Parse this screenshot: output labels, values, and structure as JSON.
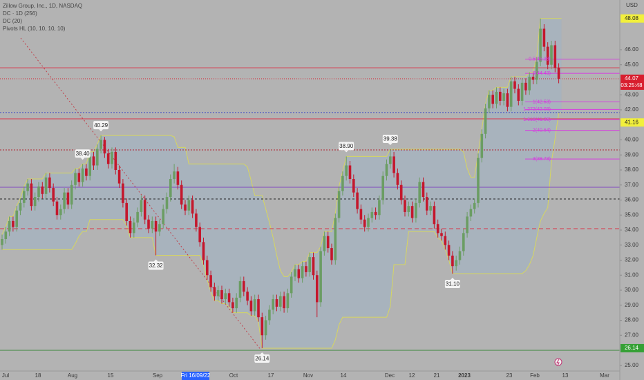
{
  "chart_data": {
    "type": "candlestick",
    "title": "Zillow Group, Inc., 1D, NASDAQ",
    "indicators": [
      "DC · 1D (256)",
      "DC (20)",
      "Pivots HL (10, 10, 10, 10)"
    ],
    "currency": "USD",
    "x_labels": [
      "Jul",
      "18",
      "Aug",
      "15",
      "Sep",
      "Fri 16/09/22",
      "Oct",
      "17",
      "Nov",
      "14",
      "Dec",
      "12",
      "21",
      "2023",
      "23",
      "Feb",
      "13",
      "Mar"
    ],
    "open": [
      33.0,
      33.4,
      33.9,
      34.6,
      34.2,
      35.3,
      35.8,
      36.6,
      37.1,
      35.6,
      36.2,
      36.9,
      36.4,
      37.5,
      36.8,
      35.9,
      35.0,
      35.4,
      36.5,
      35.7,
      37.0,
      37.8,
      37.2,
      38.1,
      37.6,
      38.9,
      38.3,
      39.4,
      40.0,
      39.1,
      38.4,
      39.2,
      38.0,
      37.1,
      35.8,
      34.6,
      33.8,
      34.5,
      35.2,
      36.0,
      34.7,
      34.1,
      34.6,
      33.9,
      34.4,
      35.4,
      36.2,
      37.4,
      37.9,
      37.0,
      35.7,
      35.3,
      36.0,
      35.1,
      34.2,
      33.2,
      32.0,
      31.0,
      30.2,
      29.6,
      30.0,
      29.4,
      29.8,
      29.2,
      28.8,
      29.5,
      30.6,
      29.9,
      29.3,
      28.6,
      29.4,
      28.2,
      27.0,
      28.0,
      28.7,
      29.4,
      28.9,
      29.6,
      28.8,
      29.8,
      30.9,
      31.4,
      30.8,
      31.6,
      31.2,
      32.2,
      31.0,
      29.2,
      32.6,
      33.6,
      32.8,
      32.0,
      34.8,
      36.6,
      37.6,
      38.3,
      37.4,
      36.5,
      35.4,
      34.7,
      34.2,
      34.8,
      35.2,
      35.0,
      36.0,
      37.6,
      38.4,
      38.9,
      37.8,
      37.0,
      36.0,
      35.2,
      35.6,
      34.8,
      35.8,
      37.2,
      36.2,
      35.3,
      35.6,
      34.4,
      33.8,
      33.6,
      33.0,
      32.3,
      31.6,
      32.0,
      32.6,
      33.8,
      34.9,
      35.4,
      35.8,
      38.8,
      40.4,
      42.1,
      43.0,
      42.4,
      43.2,
      42.6,
      43.1,
      42.2,
      43.9,
      43.4,
      42.6,
      43.8,
      43.3,
      44.2,
      44.0,
      45.2,
      47.4,
      46.2,
      45.0,
      46.3,
      44.8
    ],
    "high": [
      33.7,
      34.2,
      34.9,
      34.9,
      35.6,
      36.1,
      36.9,
      37.4,
      37.4,
      36.5,
      37.2,
      37.2,
      37.8,
      37.8,
      37.1,
      36.2,
      35.7,
      36.8,
      36.8,
      37.3,
      38.1,
      38.1,
      38.4,
      38.4,
      39.2,
      39.2,
      39.7,
      40.29,
      40.2,
      39.4,
      39.5,
      39.5,
      38.3,
      37.4,
      36.1,
      34.9,
      34.8,
      35.5,
      36.3,
      36.3,
      35.0,
      34.9,
      34.9,
      34.7,
      35.7,
      36.5,
      37.7,
      38.4,
      38.2,
      37.3,
      36.0,
      36.3,
      36.3,
      35.4,
      34.5,
      33.5,
      32.3,
      31.3,
      30.5,
      30.3,
      30.3,
      30.1,
      30.1,
      29.5,
      29.8,
      30.9,
      30.9,
      30.2,
      29.6,
      29.7,
      29.7,
      28.5,
      28.3,
      29.0,
      29.7,
      29.7,
      29.9,
      29.9,
      30.1,
      31.2,
      31.7,
      31.7,
      31.9,
      31.9,
      32.5,
      32.5,
      31.3,
      32.9,
      33.9,
      33.9,
      33.1,
      35.1,
      36.9,
      37.9,
      38.9,
      38.6,
      37.7,
      36.8,
      35.7,
      35.0,
      35.1,
      35.5,
      35.5,
      36.3,
      37.9,
      38.7,
      39.38,
      39.2,
      38.1,
      37.3,
      36.3,
      35.9,
      35.9,
      36.1,
      37.5,
      37.5,
      36.5,
      35.9,
      35.9,
      34.7,
      34.1,
      33.9,
      33.3,
      32.6,
      32.3,
      32.9,
      34.1,
      35.2,
      35.7,
      36.1,
      39.1,
      40.7,
      42.4,
      43.3,
      43.3,
      43.5,
      43.5,
      43.4,
      43.4,
      44.2,
      44.2,
      43.7,
      44.1,
      44.1,
      44.5,
      44.5,
      45.5,
      48.08,
      47.7,
      46.5,
      46.6,
      46.6,
      45.1
    ],
    "low": [
      32.7,
      33.1,
      33.6,
      33.9,
      33.9,
      35.0,
      35.5,
      36.3,
      35.3,
      35.3,
      35.9,
      36.1,
      36.1,
      36.5,
      35.6,
      34.7,
      34.7,
      35.1,
      35.4,
      35.4,
      36.7,
      36.9,
      36.9,
      37.3,
      37.3,
      38.0,
      38.0,
      39.1,
      38.8,
      38.1,
      38.1,
      37.7,
      36.8,
      35.5,
      34.3,
      33.5,
      33.5,
      34.2,
      34.9,
      34.4,
      33.8,
      33.8,
      32.32,
      33.6,
      34.1,
      35.1,
      35.9,
      37.1,
      36.7,
      35.4,
      35.0,
      35.0,
      34.8,
      33.9,
      32.9,
      31.7,
      30.7,
      29.9,
      29.3,
      29.3,
      29.1,
      29.1,
      28.9,
      28.5,
      28.5,
      29.2,
      29.6,
      29.0,
      28.3,
      28.3,
      27.9,
      26.14,
      26.7,
      27.7,
      28.4,
      28.6,
      28.6,
      28.5,
      28.5,
      29.5,
      30.6,
      30.5,
      30.5,
      30.9,
      30.9,
      30.7,
      28.2,
      28.9,
      32.3,
      32.5,
      31.7,
      31.7,
      34.5,
      36.3,
      37.3,
      37.1,
      36.2,
      35.1,
      34.4,
      33.9,
      33.9,
      34.5,
      34.7,
      34.7,
      35.7,
      37.3,
      38.1,
      37.5,
      36.7,
      35.7,
      34.9,
      34.9,
      34.5,
      34.5,
      35.5,
      35.9,
      35.0,
      35.0,
      34.1,
      33.5,
      33.3,
      32.7,
      32.0,
      31.1,
      31.3,
      31.7,
      32.3,
      33.5,
      34.6,
      35.1,
      35.5,
      38.5,
      40.1,
      41.8,
      42.1,
      42.1,
      42.3,
      42.3,
      41.9,
      41.9,
      43.1,
      42.3,
      42.3,
      43.0,
      43.0,
      43.7,
      43.7,
      44.9,
      45.9,
      44.7,
      44.7,
      44.5,
      43.77
    ],
    "close": [
      33.4,
      33.9,
      34.6,
      34.2,
      35.3,
      35.8,
      36.6,
      37.1,
      35.6,
      36.2,
      36.9,
      36.4,
      37.5,
      36.8,
      35.9,
      35.0,
      35.4,
      36.5,
      35.7,
      37.0,
      37.8,
      37.2,
      38.1,
      37.6,
      38.9,
      38.3,
      39.4,
      40.0,
      39.1,
      38.4,
      39.2,
      38.0,
      37.1,
      35.8,
      34.6,
      33.8,
      34.5,
      35.2,
      36.0,
      34.7,
      34.1,
      34.6,
      33.9,
      34.4,
      35.4,
      36.2,
      37.4,
      37.9,
      37.0,
      35.7,
      35.3,
      36.0,
      35.1,
      34.2,
      33.2,
      32.0,
      31.0,
      30.2,
      29.6,
      30.0,
      29.4,
      29.8,
      29.2,
      28.8,
      29.5,
      30.6,
      29.9,
      29.3,
      28.6,
      29.4,
      28.2,
      27.0,
      28.0,
      28.7,
      29.4,
      28.9,
      29.6,
      28.8,
      29.8,
      30.9,
      31.4,
      30.8,
      31.6,
      31.2,
      32.2,
      31.0,
      29.2,
      32.6,
      33.6,
      32.8,
      32.0,
      34.8,
      36.6,
      37.6,
      38.3,
      37.4,
      36.5,
      35.4,
      34.7,
      34.2,
      34.8,
      35.2,
      35.0,
      36.0,
      37.6,
      38.4,
      38.9,
      37.8,
      37.0,
      36.0,
      35.2,
      35.6,
      34.8,
      35.8,
      37.2,
      36.2,
      35.3,
      35.6,
      34.4,
      33.8,
      33.6,
      33.0,
      32.3,
      31.6,
      32.0,
      32.6,
      33.8,
      34.9,
      35.4,
      35.8,
      38.8,
      40.4,
      42.1,
      43.0,
      42.4,
      43.2,
      42.6,
      43.1,
      42.2,
      43.9,
      43.4,
      42.6,
      43.8,
      43.3,
      44.2,
      44.0,
      45.2,
      47.4,
      46.2,
      45.0,
      46.3,
      44.8,
      44.07
    ],
    "up_color": "#6b9d63",
    "down_color": "#c4172c",
    "ylim": [
      24.62,
      49.31
    ],
    "yticks": [
      {
        "value": 25,
        "label": "25.00"
      },
      {
        "value": 27,
        "label": "27.00"
      },
      {
        "value": 28,
        "label": "28.00"
      },
      {
        "value": 29,
        "label": "29.00"
      },
      {
        "value": 30,
        "label": "30.00"
      },
      {
        "value": 31,
        "label": "31.00"
      },
      {
        "value": 32,
        "label": "32.00"
      },
      {
        "value": 33,
        "label": "33.00"
      },
      {
        "value": 34,
        "label": "34.00"
      },
      {
        "value": 35,
        "label": "35.00"
      },
      {
        "value": 36,
        "label": "36.00"
      },
      {
        "value": 37,
        "label": "37.00"
      },
      {
        "value": 38,
        "label": "38.00"
      },
      {
        "value": 39,
        "label": "39.00"
      },
      {
        "value": 40,
        "label": "40.00"
      },
      {
        "value": 42,
        "label": "42.00"
      },
      {
        "value": 43,
        "label": "43.00"
      },
      {
        "value": 45,
        "label": "45.00"
      },
      {
        "value": 46,
        "label": "46.00"
      }
    ],
    "pivot_highs": [
      40.29,
      {
        "value": 38.4,
        "label": "38.40"
      },
      {
        "value": 38.9,
        "label": "38.90"
      },
      39.38
    ],
    "pivot_lows": [
      32.32,
      26.14,
      {
        "value": 31.1,
        "label": "31.10"
      }
    ],
    "levels": [
      {
        "value": 44.8,
        "color": "#d8344a",
        "dash": "none"
      },
      {
        "value": 41.82,
        "color": "#3b48c8",
        "dash": "2 2"
      },
      {
        "value": 41.4,
        "color": "#d8344a",
        "dash": "none"
      },
      {
        "value": 39.33,
        "color": "#b0202e",
        "dash": "2 2"
      },
      {
        "value": 36.85,
        "color": "#8048c0",
        "dash": "none"
      },
      {
        "value": 36.07,
        "color": "#222222",
        "dash": "3 3"
      },
      {
        "value": 34.09,
        "color": "#d8344a",
        "dash": "6 4"
      },
      {
        "value": 26.0,
        "color": "#3d8a3d",
        "dash": "none"
      }
    ],
    "fib_levels": [
      {
        "value": 45.38,
        "label": "-0.5(45.38)"
      },
      {
        "value": 44.43,
        "label": "0(44.43)"
      },
      {
        "value": 42.53,
        "label": "1(42.53)"
      },
      {
        "value": 42.03,
        "label": "1.272(42.03)"
      },
      {
        "value": 41.36,
        "label": "1.618(41.36)"
      },
      {
        "value": 40.64,
        "label": "2(40.64)"
      },
      {
        "value": 38.73,
        "label": "3(38.73)"
      }
    ],
    "fib_color": "#d63be0",
    "price_labels": [
      {
        "value": 48.08,
        "color": "#f2f03c"
      },
      {
        "value": 44.07,
        "color": "#d81e2e",
        "countdown": "03:25:48"
      },
      {
        "value": 41.16,
        "color": "#f2f03c"
      },
      {
        "value": 26.14,
        "color": "#35a035"
      }
    ],
    "channel_period": 20
  }
}
